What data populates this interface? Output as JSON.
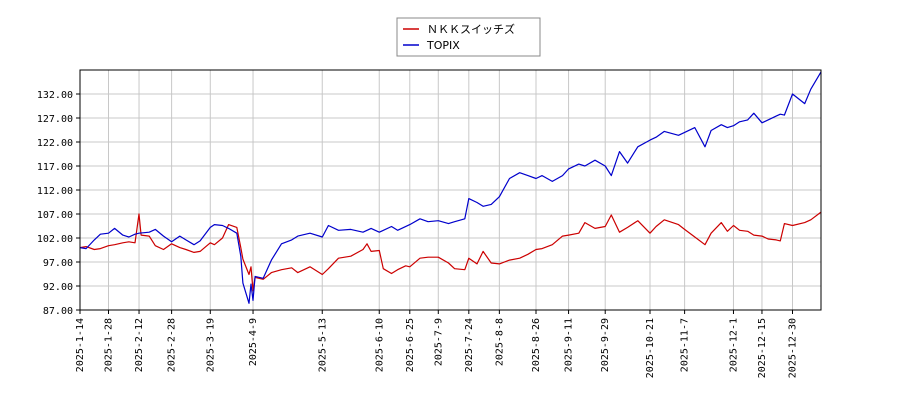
{
  "chart_data": {
    "type": "line",
    "ylim": [
      87.0,
      137.0
    ],
    "y_ticks": [
      "87.00",
      "92.00",
      "97.00",
      "102.00",
      "107.00",
      "112.00",
      "117.00",
      "122.00",
      "127.00",
      "132.00"
    ],
    "x_range": [
      "2025-01-14",
      "2026-01-13"
    ],
    "x_ticks": [
      "2025-1-14",
      "2025-1-28",
      "2025-2-12",
      "2025-2-28",
      "2025-3-19",
      "2025-4-9",
      "2025-5-13",
      "2025-6-10",
      "2025-6-25",
      "2025-7-9",
      "2025-7-24",
      "2025-8-8",
      "2025-8-26",
      "2025-9-11",
      "2025-9-29",
      "2025-10-21",
      "2025-11-7",
      "2025-12-1",
      "2025-12-15",
      "2025-12-30"
    ],
    "grid": true,
    "legend_position": "top-center",
    "series": [
      {
        "name": "ＮＫＫスイッチズ",
        "color": "#cc0000",
        "points": [
          [
            "2025-01-14",
            100.0
          ],
          [
            "2025-01-17",
            100.2
          ],
          [
            "2025-01-21",
            99.6
          ],
          [
            "2025-01-24",
            99.8
          ],
          [
            "2025-01-28",
            100.4
          ],
          [
            "2025-01-31",
            100.6
          ],
          [
            "2025-02-04",
            101.0
          ],
          [
            "2025-02-07",
            101.2
          ],
          [
            "2025-02-10",
            101.0
          ],
          [
            "2025-02-12",
            107.0
          ],
          [
            "2025-02-13",
            102.6
          ],
          [
            "2025-02-17",
            102.4
          ],
          [
            "2025-02-20",
            100.4
          ],
          [
            "2025-02-24",
            99.6
          ],
          [
            "2025-02-28",
            100.8
          ],
          [
            "2025-03-04",
            100.0
          ],
          [
            "2025-03-07",
            99.6
          ],
          [
            "2025-03-11",
            99.0
          ],
          [
            "2025-03-14",
            99.2
          ],
          [
            "2025-03-19",
            101.0
          ],
          [
            "2025-03-21",
            100.6
          ],
          [
            "2025-03-25",
            102.0
          ],
          [
            "2025-03-28",
            104.8
          ],
          [
            "2025-04-01",
            104.2
          ],
          [
            "2025-04-03",
            100.0
          ],
          [
            "2025-04-04",
            97.6
          ],
          [
            "2025-04-07",
            94.4
          ],
          [
            "2025-04-08",
            96.0
          ],
          [
            "2025-04-09",
            91.0
          ],
          [
            "2025-04-10",
            93.8
          ],
          [
            "2025-04-14",
            93.4
          ],
          [
            "2025-04-18",
            94.8
          ],
          [
            "2025-04-23",
            95.4
          ],
          [
            "2025-04-28",
            95.8
          ],
          [
            "2025-05-01",
            94.8
          ],
          [
            "2025-05-07",
            96.0
          ],
          [
            "2025-05-13",
            94.4
          ],
          [
            "2025-05-16",
            95.6
          ],
          [
            "2025-05-21",
            97.8
          ],
          [
            "2025-05-27",
            98.2
          ],
          [
            "2025-06-02",
            99.6
          ],
          [
            "2025-06-04",
            100.8
          ],
          [
            "2025-06-06",
            99.2
          ],
          [
            "2025-06-10",
            99.4
          ],
          [
            "2025-06-12",
            95.6
          ],
          [
            "2025-06-16",
            94.6
          ],
          [
            "2025-06-19",
            95.4
          ],
          [
            "2025-06-23",
            96.2
          ],
          [
            "2025-06-25",
            96.0
          ],
          [
            "2025-06-30",
            97.8
          ],
          [
            "2025-07-04",
            98.0
          ],
          [
            "2025-07-09",
            98.0
          ],
          [
            "2025-07-14",
            96.8
          ],
          [
            "2025-07-17",
            95.6
          ],
          [
            "2025-07-22",
            95.4
          ],
          [
            "2025-07-24",
            97.8
          ],
          [
            "2025-07-28",
            96.6
          ],
          [
            "2025-07-31",
            99.2
          ],
          [
            "2025-08-04",
            96.8
          ],
          [
            "2025-08-08",
            96.6
          ],
          [
            "2025-08-13",
            97.4
          ],
          [
            "2025-08-18",
            97.8
          ],
          [
            "2025-08-22",
            98.6
          ],
          [
            "2025-08-26",
            99.6
          ],
          [
            "2025-08-29",
            99.8
          ],
          [
            "2025-09-03",
            100.6
          ],
          [
            "2025-09-08",
            102.4
          ],
          [
            "2025-09-11",
            102.6
          ],
          [
            "2025-09-16",
            103.0
          ],
          [
            "2025-09-19",
            105.2
          ],
          [
            "2025-09-24",
            104.0
          ],
          [
            "2025-09-29",
            104.4
          ],
          [
            "2025-10-02",
            106.8
          ],
          [
            "2025-10-06",
            103.2
          ],
          [
            "2025-10-10",
            104.2
          ],
          [
            "2025-10-15",
            105.6
          ],
          [
            "2025-10-21",
            103.0
          ],
          [
            "2025-10-24",
            104.4
          ],
          [
            "2025-10-28",
            105.8
          ],
          [
            "2025-11-04",
            104.8
          ],
          [
            "2025-11-07",
            103.8
          ],
          [
            "2025-11-12",
            102.2
          ],
          [
            "2025-11-17",
            100.6
          ],
          [
            "2025-11-20",
            103.0
          ],
          [
            "2025-11-25",
            105.2
          ],
          [
            "2025-11-28",
            103.4
          ],
          [
            "2025-12-01",
            104.6
          ],
          [
            "2025-12-04",
            103.6
          ],
          [
            "2025-12-08",
            103.4
          ],
          [
            "2025-12-11",
            102.6
          ],
          [
            "2025-12-15",
            102.4
          ],
          [
            "2025-12-18",
            101.8
          ],
          [
            "2025-12-22",
            101.6
          ],
          [
            "2025-12-24",
            101.4
          ],
          [
            "2025-12-26",
            105.0
          ],
          [
            "2025-12-30",
            104.6
          ],
          [
            "2026-01-05",
            105.2
          ],
          [
            "2026-01-08",
            105.8
          ],
          [
            "2026-01-13",
            107.4
          ]
        ]
      },
      {
        "name": "TOPIX",
        "color": "#0000cc",
        "points": [
          [
            "2025-01-14",
            100.0
          ],
          [
            "2025-01-17",
            99.8
          ],
          [
            "2025-01-21",
            101.6
          ],
          [
            "2025-01-24",
            102.8
          ],
          [
            "2025-01-28",
            103.0
          ],
          [
            "2025-01-31",
            104.0
          ],
          [
            "2025-02-04",
            102.6
          ],
          [
            "2025-02-07",
            102.2
          ],
          [
            "2025-02-10",
            102.8
          ],
          [
            "2025-02-12",
            103.0
          ],
          [
            "2025-02-17",
            103.2
          ],
          [
            "2025-02-20",
            103.8
          ],
          [
            "2025-02-24",
            102.4
          ],
          [
            "2025-02-28",
            101.2
          ],
          [
            "2025-03-04",
            102.4
          ],
          [
            "2025-03-07",
            101.6
          ],
          [
            "2025-03-11",
            100.6
          ],
          [
            "2025-03-14",
            101.4
          ],
          [
            "2025-03-19",
            104.2
          ],
          [
            "2025-03-21",
            104.8
          ],
          [
            "2025-03-25",
            104.6
          ],
          [
            "2025-03-28",
            104.0
          ],
          [
            "2025-04-01",
            103.0
          ],
          [
            "2025-04-03",
            98.2
          ],
          [
            "2025-04-04",
            92.6
          ],
          [
            "2025-04-07",
            88.4
          ],
          [
            "2025-04-08",
            92.4
          ],
          [
            "2025-04-09",
            89.0
          ],
          [
            "2025-04-10",
            94.0
          ],
          [
            "2025-04-14",
            93.6
          ],
          [
            "2025-04-18",
            97.4
          ],
          [
            "2025-04-23",
            100.8
          ],
          [
            "2025-04-28",
            101.6
          ],
          [
            "2025-05-01",
            102.4
          ],
          [
            "2025-05-07",
            103.0
          ],
          [
            "2025-05-13",
            102.2
          ],
          [
            "2025-05-16",
            104.6
          ],
          [
            "2025-05-21",
            103.6
          ],
          [
            "2025-05-27",
            103.8
          ],
          [
            "2025-06-02",
            103.2
          ],
          [
            "2025-06-06",
            104.0
          ],
          [
            "2025-06-10",
            103.2
          ],
          [
            "2025-06-16",
            104.4
          ],
          [
            "2025-06-19",
            103.6
          ],
          [
            "2025-06-25",
            104.8
          ],
          [
            "2025-06-30",
            106.0
          ],
          [
            "2025-07-04",
            105.4
          ],
          [
            "2025-07-09",
            105.6
          ],
          [
            "2025-07-14",
            105.0
          ],
          [
            "2025-07-17",
            105.4
          ],
          [
            "2025-07-22",
            106.0
          ],
          [
            "2025-07-24",
            110.2
          ],
          [
            "2025-07-28",
            109.4
          ],
          [
            "2025-07-31",
            108.6
          ],
          [
            "2025-08-04",
            109.0
          ],
          [
            "2025-08-08",
            110.6
          ],
          [
            "2025-08-13",
            114.4
          ],
          [
            "2025-08-18",
            115.6
          ],
          [
            "2025-08-22",
            115.0
          ],
          [
            "2025-08-26",
            114.4
          ],
          [
            "2025-08-29",
            115.0
          ],
          [
            "2025-09-03",
            113.8
          ],
          [
            "2025-09-08",
            115.0
          ],
          [
            "2025-09-11",
            116.4
          ],
          [
            "2025-09-16",
            117.4
          ],
          [
            "2025-09-19",
            117.0
          ],
          [
            "2025-09-24",
            118.2
          ],
          [
            "2025-09-29",
            117.0
          ],
          [
            "2025-10-02",
            115.0
          ],
          [
            "2025-10-06",
            120.0
          ],
          [
            "2025-10-10",
            117.6
          ],
          [
            "2025-10-15",
            121.0
          ],
          [
            "2025-10-21",
            122.4
          ],
          [
            "2025-10-24",
            123.0
          ],
          [
            "2025-10-28",
            124.2
          ],
          [
            "2025-11-04",
            123.4
          ],
          [
            "2025-11-07",
            124.0
          ],
          [
            "2025-11-12",
            125.0
          ],
          [
            "2025-11-17",
            121.0
          ],
          [
            "2025-11-20",
            124.4
          ],
          [
            "2025-11-25",
            125.6
          ],
          [
            "2025-11-28",
            125.0
          ],
          [
            "2025-12-01",
            125.4
          ],
          [
            "2025-12-04",
            126.2
          ],
          [
            "2025-12-08",
            126.6
          ],
          [
            "2025-12-11",
            128.0
          ],
          [
            "2025-12-15",
            126.0
          ],
          [
            "2025-12-18",
            126.6
          ],
          [
            "2025-12-22",
            127.4
          ],
          [
            "2025-12-24",
            127.8
          ],
          [
            "2025-12-26",
            127.6
          ],
          [
            "2025-12-30",
            132.0
          ],
          [
            "2026-01-05",
            130.0
          ],
          [
            "2026-01-08",
            133.0
          ],
          [
            "2026-01-13",
            136.6
          ]
        ]
      }
    ]
  }
}
